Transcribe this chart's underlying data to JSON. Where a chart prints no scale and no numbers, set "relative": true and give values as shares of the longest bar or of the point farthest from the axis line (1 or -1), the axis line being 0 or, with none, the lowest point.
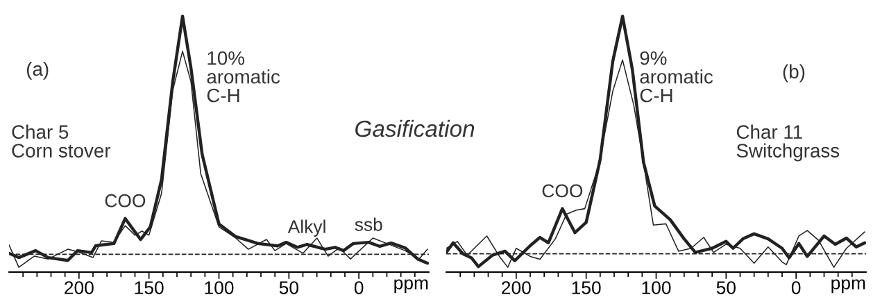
{
  "chart_data": [
    {
      "type": "line",
      "relative": true,
      "xlabel": "ppm",
      "xlim": [
        250,
        -50
      ],
      "xticks": [
        {
          "value": 240,
          "label": null
        },
        {
          "value": 230,
          "label": null
        },
        {
          "value": 220,
          "label": null
        },
        {
          "value": 210,
          "label": null
        },
        200,
        {
          "value": 190,
          "label": null
        },
        {
          "value": 180,
          "label": null
        },
        {
          "value": 170,
          "label": null
        },
        {
          "value": 160,
          "label": null
        },
        150,
        {
          "value": 140,
          "label": null
        },
        {
          "value": 130,
          "label": null
        },
        {
          "value": 120,
          "label": null
        },
        {
          "value": 110,
          "label": null
        },
        100,
        {
          "value": 90,
          "label": null
        },
        {
          "value": 80,
          "label": null
        },
        {
          "value": 70,
          "label": null
        },
        {
          "value": 60,
          "label": null
        },
        50,
        {
          "value": 40,
          "label": null
        },
        {
          "value": 30,
          "label": null
        },
        {
          "value": 20,
          "label": null
        },
        {
          "value": 10,
          "label": null
        },
        0,
        {
          "value": -10,
          "label": null
        },
        {
          "value": -20,
          "label": null
        },
        {
          "value": -30,
          "label": null
        },
        {
          "value": -40,
          "label": null
        }
      ],
      "tick_labels": "x",
      "grid": false,
      "legend": false,
      "marker": "none",
      "line_style": "solid",
      "ref_lines": [
        {
          "axis": "y",
          "value": 0,
          "color": "#222222",
          "line_style": "dashed"
        }
      ],
      "annotations": [
        "(a)",
        "10%\naromatic\nC-H",
        "Char 5\nCorn stover",
        "Gasification",
        {
          "text": "COO",
          "x": 167,
          "y": 0.15
        },
        {
          "text": "Alkyl",
          "x": 37,
          "y": 0.041
        },
        {
          "text": "ssb",
          "x": -7,
          "y": 0.05
        }
      ],
      "series": [
        {
          "color": "#222222",
          "x": [
            250,
            243,
            231,
            222,
            208,
            201,
            191,
            188,
            175,
            167,
            156,
            149,
            141,
            133,
            126,
            120,
            112,
            100,
            88,
            72,
            58,
            52,
            44,
            37,
            24,
            17,
            11,
            4,
            -7,
            -15,
            -23,
            -33,
            -42,
            -49
          ],
          "values": [
            0.004,
            -0.014,
            0.015,
            -0.014,
            -0.026,
            0.015,
            0.007,
            0.036,
            0.045,
            0.15,
            0.062,
            0.115,
            0.314,
            0.725,
            1.0,
            0.783,
            0.42,
            0.127,
            0.074,
            0.045,
            0.035,
            0.05,
            0.029,
            0.041,
            0.021,
            0.029,
            0.015,
            0.045,
            0.05,
            0.033,
            0.047,
            0.027,
            -0.02,
            -0.038
          ]
        },
        {
          "color": "#222222",
          "x": [
            250,
            243,
            232,
            222,
            208,
            200,
            190,
            184,
            175,
            167,
            160,
            155,
            150,
            141,
            133,
            126,
            120,
            113,
            100,
            88,
            79,
            66,
            60,
            52,
            40,
            30,
            22,
            14,
            6,
            -10,
            -20,
            -33,
            -43,
            -49
          ],
          "values": [
            0.039,
            -0.055,
            -0.008,
            -0.02,
            0.021,
            0.009,
            -0.014,
            0.056,
            0.05,
            0.12,
            0.08,
            0.097,
            0.08,
            0.256,
            0.689,
            0.853,
            0.725,
            0.338,
            0.115,
            0.068,
            0.021,
            0.062,
            0.015,
            0.045,
            0.004,
            0.068,
            -0.008,
            0.027,
            -0.02,
            0.068,
            0.045,
            0.015,
            -0.02,
            0.021
          ]
        }
      ]
    },
    {
      "type": "line",
      "relative": true,
      "xlabel": "ppm",
      "xlim": [
        250,
        -50
      ],
      "xticks": [
        {
          "value": 240,
          "label": null
        },
        {
          "value": 230,
          "label": null
        },
        {
          "value": 220,
          "label": null
        },
        {
          "value": 210,
          "label": null
        },
        200,
        {
          "value": 190,
          "label": null
        },
        {
          "value": 180,
          "label": null
        },
        {
          "value": 170,
          "label": null
        },
        {
          "value": 160,
          "label": null
        },
        150,
        {
          "value": 140,
          "label": null
        },
        {
          "value": 130,
          "label": null
        },
        {
          "value": 120,
          "label": null
        },
        {
          "value": 110,
          "label": null
        },
        100,
        {
          "value": 90,
          "label": null
        },
        {
          "value": 80,
          "label": null
        },
        {
          "value": 70,
          "label": null
        },
        {
          "value": 60,
          "label": null
        },
        50,
        {
          "value": 40,
          "label": null
        },
        {
          "value": 30,
          "label": null
        },
        {
          "value": 20,
          "label": null
        },
        {
          "value": 10,
          "label": null
        },
        0,
        {
          "value": -10,
          "label": null
        },
        {
          "value": -20,
          "label": null
        },
        {
          "value": -30,
          "label": null
        },
        {
          "value": -40,
          "label": null
        }
      ],
      "tick_labels": "x",
      "grid": false,
      "legend": false,
      "marker": "none",
      "line_style": "solid",
      "ref_lines": [
        {
          "axis": "y",
          "value": 0,
          "color": "#222222",
          "line_style": "dashed"
        }
      ],
      "annotations": [
        "(b)",
        "9%\naromatic\nC-H",
        "Char 11\nSwitchgrass",
        {
          "text": "COO",
          "x": 167,
          "y": 0.19
        }
      ],
      "series": [
        {
          "color": "#222222",
          "x": [
            250,
            245,
            238,
            232,
            227,
            217,
            208,
            201,
            190,
            183,
            177,
            167,
            158,
            150,
            140,
            131,
            124,
            117,
            109,
            101,
            90,
            80,
            72,
            60,
            50,
            45,
            38,
            30,
            20,
            10,
            5,
            -2,
            -8,
            -20,
            -28,
            -36,
            -43,
            -49
          ],
          "values": [
            0.006,
            0.046,
            0,
            -0.017,
            -0.054,
            -0.006,
            0.011,
            -0.029,
            0.034,
            0.069,
            0.046,
            0.19,
            0.089,
            0.132,
            0.397,
            0.81,
            1.0,
            0.776,
            0.385,
            0.201,
            0.144,
            0.063,
            0.006,
            0.023,
            0.052,
            0.023,
            0.063,
            0.084,
            0.063,
            0.023,
            -0.017,
            0.043,
            -0.011,
            0.075,
            0.04,
            0.066,
            0.029,
            0.046
          ]
        },
        {
          "color": "#222222",
          "x": [
            250,
            242,
            235,
            221,
            212,
            206,
            200,
            190,
            183,
            172,
            164,
            157,
            151,
            141,
            131,
            124,
            116,
            110,
            102,
            93,
            84,
            75,
            66,
            59,
            50,
            40,
            30,
            20,
            10,
            7,
            -2,
            -8,
            -16,
            -27,
            -36,
            -49
          ],
          "values": [
            0.023,
            0.052,
            -0.006,
            0.075,
            -0.011,
            -0.057,
            0.023,
            -0.011,
            -0.023,
            0.063,
            0.167,
            0.184,
            0.19,
            0.374,
            0.684,
            0.816,
            0.626,
            0.42,
            0.121,
            0.126,
            0.011,
            0.023,
            0.069,
            0.006,
            0.04,
            0.023,
            -0.04,
            0.029,
            -0.034,
            -0.046,
            0.075,
            0.098,
            0.057,
            -0.057,
            0.023,
            0.092
          ]
        }
      ]
    }
  ]
}
